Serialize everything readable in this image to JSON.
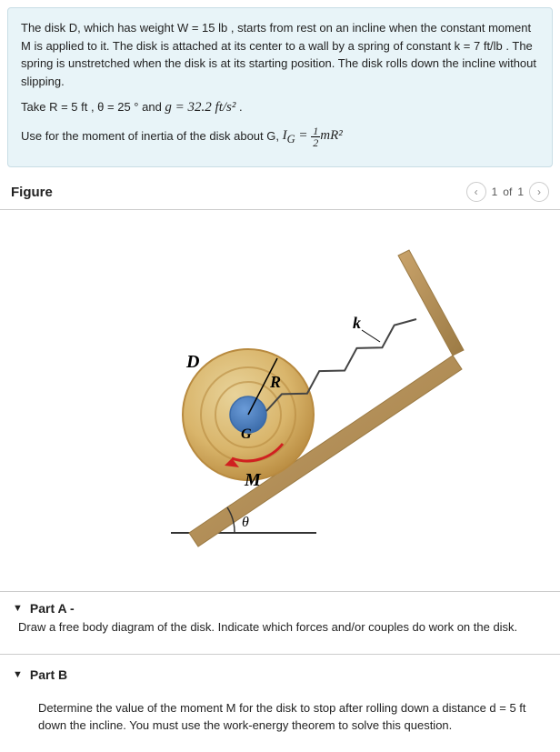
{
  "problem": {
    "text1": "The disk D, which has weight W = 15 lb ,  starts from rest on an incline when the constant moment M is applied to it. The disk is attached at its center to a wall by a spring of constant k = 7 ft/lb . The spring is unstretched when the disk is at its starting position. The disk rolls down the incline without slipping.",
    "text2_prefix": "Take R = 5 ft ,  θ  = 25 °  and ",
    "text2_g": "g = 32.2 ft/s²",
    "text2_suffix": " .",
    "text3_prefix": "Use for the moment of inertia of the disk about G, ",
    "inertia_lhs": "I",
    "inertia_sub": "G",
    "inertia_eq": " = ",
    "inertia_frac_num": "1",
    "inertia_frac_den": "2",
    "inertia_rhs": "mR²"
  },
  "figure": {
    "title": "Figure",
    "pager_current": "1",
    "pager_of": "of",
    "pager_total": "1",
    "labels": {
      "D": "D",
      "R": "R",
      "G": "G",
      "M": "M",
      "k": "k",
      "theta": "θ"
    },
    "colors": {
      "incline": "#c9a36b",
      "incline_dark": "#9b7a44",
      "disk_outer": "#b88a3f",
      "disk_mid": "#d9b56b",
      "disk_inner": "#e8d39a",
      "hub": "#6a9bd8",
      "hub_dark": "#3a6aa8",
      "arrow": "#d02020",
      "spring": "#444444",
      "ground": "#333333"
    }
  },
  "partA": {
    "label": "Part A -",
    "desc": "Draw a free body diagram of the disk. Indicate which forces and/or couples do work on the disk."
  },
  "partB": {
    "label": "Part B",
    "desc": "Determine the value of the moment M for the disk to stop after rolling down a distance d = 5 ft down the incline. You must use the work-energy theorem to solve this question."
  }
}
